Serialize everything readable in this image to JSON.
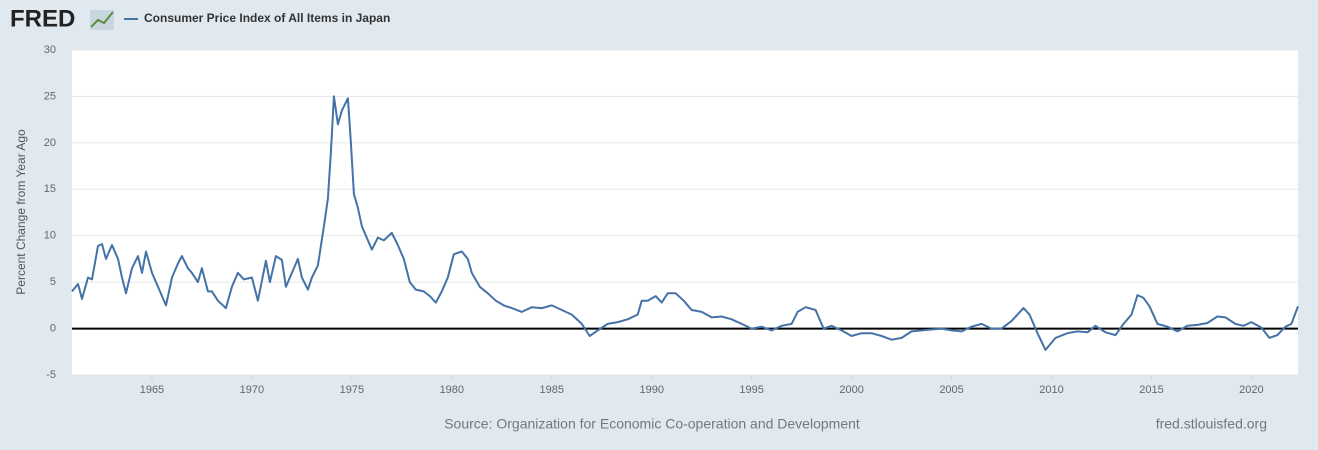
{
  "logo": "FRED",
  "chart_data": {
    "type": "line",
    "y_label": "Percent Change from Year Ago",
    "source": "Source: Organization for Economic Co-operation and Development",
    "site": "fred.stlouisfed.org",
    "x": [
      1961.0,
      1961.3,
      1961.5,
      1961.8,
      1962.0,
      1962.3,
      1962.5,
      1962.7,
      1963.0,
      1963.3,
      1963.5,
      1963.7,
      1964.0,
      1964.3,
      1964.5,
      1964.7,
      1965.0,
      1965.3,
      1965.5,
      1965.7,
      1966.0,
      1966.3,
      1966.5,
      1966.8,
      1967.0,
      1967.3,
      1967.5,
      1967.8,
      1968.0,
      1968.3,
      1968.7,
      1969.0,
      1969.3,
      1969.6,
      1970.0,
      1970.3,
      1970.7,
      1970.9,
      1971.2,
      1971.5,
      1971.7,
      1972.0,
      1972.3,
      1972.5,
      1972.8,
      1973.0,
      1973.3,
      1973.6,
      1973.8,
      1973.95,
      1974.1,
      1974.3,
      1974.5,
      1974.8,
      1974.95,
      1975.1,
      1975.3,
      1975.5,
      1975.7,
      1976.0,
      1976.3,
      1976.6,
      1977.0,
      1977.3,
      1977.6,
      1977.9,
      1978.2,
      1978.6,
      1978.9,
      1979.2,
      1979.5,
      1979.8,
      1980.1,
      1980.5,
      1980.8,
      1981.0,
      1981.4,
      1981.8,
      1982.2,
      1982.6,
      1983.0,
      1983.5,
      1984.0,
      1984.5,
      1985.0,
      1985.5,
      1986.0,
      1986.5,
      1986.9,
      1987.3,
      1987.8,
      1988.3,
      1988.8,
      1989.3,
      1989.5,
      1989.8,
      1990.2,
      1990.5,
      1990.8,
      1991.2,
      1991.6,
      1992.0,
      1992.5,
      1993.0,
      1993.5,
      1994.0,
      1994.5,
      1995.0,
      1995.5,
      1996.0,
      1996.5,
      1997.0,
      1997.3,
      1997.7,
      1998.2,
      1998.6,
      1999.0,
      1999.5,
      2000.0,
      2000.5,
      2001.0,
      2001.5,
      2002.0,
      2002.5,
      2003.0,
      2003.5,
      2004.0,
      2004.5,
      2005.0,
      2005.5,
      2006.0,
      2006.5,
      2007.0,
      2007.5,
      2008.0,
      2008.6,
      2008.9,
      2009.3,
      2009.7,
      2010.2,
      2010.8,
      2011.3,
      2011.8,
      2012.2,
      2012.7,
      2013.2,
      2013.6,
      2014.0,
      2014.3,
      2014.6,
      2014.9,
      2015.3,
      2015.8,
      2016.3,
      2016.8,
      2017.3,
      2017.8,
      2018.3,
      2018.7,
      2019.2,
      2019.6,
      2020.0,
      2020.5,
      2020.9,
      2021.3,
      2021.7,
      2022.0,
      2022.33
    ],
    "series": [
      {
        "name": "Consumer Price Index of All Items in Japan",
        "color": "#4572a7",
        "values": [
          4,
          4.8,
          3.2,
          5.5,
          5.3,
          8.9,
          9.1,
          7.5,
          9.0,
          7.5,
          5.5,
          3.8,
          6.5,
          7.8,
          6.0,
          8.3,
          6.0,
          4.5,
          3.5,
          2.5,
          5.5,
          7.0,
          7.8,
          6.5,
          6.0,
          5.0,
          6.5,
          4.0,
          4.0,
          3.0,
          2.2,
          4.5,
          6.0,
          5.3,
          5.5,
          3.0,
          7.3,
          5.0,
          7.8,
          7.4,
          4.5,
          6.0,
          7.5,
          5.5,
          4.2,
          5.5,
          6.8,
          11,
          14,
          19,
          25,
          22,
          23.5,
          24.8,
          20,
          14.5,
          13,
          11,
          10,
          8.5,
          9.8,
          9.5,
          10.3,
          9.0,
          7.5,
          5.0,
          4.2,
          4.0,
          3.5,
          2.8,
          4.0,
          5.5,
          8.0,
          8.3,
          7.5,
          6.0,
          4.5,
          3.8,
          3.0,
          2.5,
          2.2,
          1.8,
          2.3,
          2.2,
          2.5,
          2.0,
          1.5,
          0.5,
          -0.8,
          -0.2,
          0.5,
          0.7,
          1.0,
          1.5,
          3.0,
          3.0,
          3.5,
          2.8,
          3.8,
          3.8,
          3.0,
          2.0,
          1.8,
          1.2,
          1.3,
          1.0,
          0.5,
          0,
          0.2,
          -0.2,
          0.3,
          0.5,
          1.8,
          2.3,
          2.0,
          0,
          0.3,
          -0.2,
          -0.8,
          -0.5,
          -0.5,
          -0.8,
          -1.2,
          -1.0,
          -0.3,
          -0.2,
          -0.1,
          0,
          -0.2,
          -0.3,
          0.2,
          0.5,
          0,
          0,
          0.8,
          2.2,
          1.5,
          -0.5,
          -2.3,
          -1.0,
          -0.5,
          -0.3,
          -0.4,
          0.3,
          -0.4,
          -0.7,
          0.5,
          1.5,
          3.6,
          3.3,
          2.4,
          0.5,
          0.2,
          -0.3,
          0.3,
          0.4,
          0.6,
          1.3,
          1.2,
          0.5,
          0.3,
          0.7,
          0.1,
          -1.0,
          -0.7,
          0.2,
          0.5,
          2.4
        ]
      }
    ],
    "xlim": [
      1961,
      2022.33
    ],
    "xticks": [
      1965,
      1970,
      1975,
      1980,
      1985,
      1990,
      1995,
      2000,
      2005,
      2010,
      2015,
      2020
    ],
    "ylim": [
      -5,
      30
    ],
    "yticks": [
      -5,
      0,
      5,
      10,
      15,
      20,
      25,
      30
    ],
    "grid": true,
    "zero_line": true
  }
}
